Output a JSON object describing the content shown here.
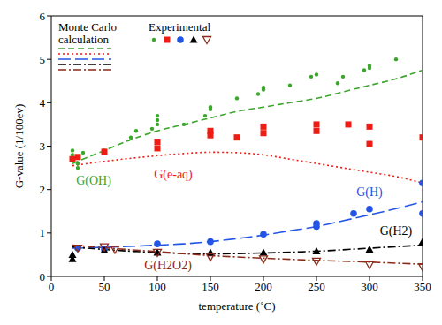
{
  "chart_data": {
    "type": "line",
    "x_label": "temperature (˚C)",
    "y_label": "G-value (1/100ev)",
    "xlim": [
      0,
      350
    ],
    "xticks": [
      0,
      50,
      100,
      150,
      200,
      250,
      300,
      350
    ],
    "ylim": [
      0,
      6
    ],
    "yticks": [
      0,
      1,
      2,
      3,
      4,
      5,
      6
    ],
    "grid": false,
    "legend": "upper left",
    "legend_titles": {
      "line": "Monte Carlo calculation",
      "scatter": "Experimental"
    },
    "series": [
      {
        "name": "G(OH)",
        "type": "line",
        "color": "#3aa62a",
        "line_style": "dashed",
        "x": [
          20,
          25,
          50,
          75,
          100,
          125,
          150,
          175,
          200,
          225,
          250,
          275,
          300,
          325,
          350
        ],
        "values": [
          2.6,
          2.65,
          2.9,
          3.15,
          3.35,
          3.5,
          3.65,
          3.8,
          3.9,
          4.0,
          4.1,
          4.25,
          4.4,
          4.55,
          4.75
        ]
      },
      {
        "name": "G(e-aq)",
        "type": "line",
        "color": "#ee1c12",
        "line_style": "dotted",
        "x": [
          20,
          50,
          75,
          100,
          125,
          150,
          175,
          200,
          225,
          250,
          275,
          300,
          325,
          350
        ],
        "values": [
          2.55,
          2.65,
          2.72,
          2.78,
          2.83,
          2.86,
          2.85,
          2.8,
          2.7,
          2.6,
          2.5,
          2.4,
          2.3,
          2.15
        ]
      },
      {
        "name": "G(H)",
        "type": "line",
        "color": "#2255e6",
        "line_style": "long_dash",
        "x": [
          20,
          50,
          100,
          125,
          150,
          175,
          200,
          225,
          250,
          275,
          300,
          325,
          350
        ],
        "values": [
          0.65,
          0.67,
          0.72,
          0.75,
          0.8,
          0.87,
          0.95,
          1.05,
          1.15,
          1.28,
          1.42,
          1.56,
          1.72
        ]
      },
      {
        "name": "G(H2)",
        "type": "line",
        "color": "#000000",
        "line_style": "dash_dot",
        "x": [
          20,
          50,
          100,
          150,
          200,
          250,
          300,
          350
        ],
        "values": [
          0.68,
          0.62,
          0.55,
          0.52,
          0.54,
          0.58,
          0.65,
          0.72
        ]
      },
      {
        "name": "G(H2O2)",
        "type": "line",
        "color": "#8b2a1a",
        "line_style": "dash_dot",
        "x": [
          20,
          50,
          100,
          150,
          200,
          250,
          300,
          350
        ],
        "values": [
          0.72,
          0.66,
          0.57,
          0.48,
          0.42,
          0.37,
          0.33,
          0.28
        ]
      },
      {
        "name": "G(OH)",
        "type": "scatter",
        "color": "#3aa62a",
        "marker": "dot",
        "x": [
          20,
          20,
          25,
          25,
          25,
          30,
          50,
          75,
          80,
          95,
          100,
          100,
          100,
          125,
          145,
          150,
          150,
          175,
          195,
          200,
          200,
          225,
          245,
          250,
          270,
          275,
          295,
          300,
          300,
          325
        ],
        "values": [
          2.9,
          2.8,
          2.5,
          2.6,
          2.75,
          2.85,
          2.9,
          3.2,
          3.35,
          3.4,
          3.6,
          3.5,
          3.7,
          3.5,
          3.7,
          3.9,
          3.85,
          4.1,
          4.2,
          4.3,
          4.35,
          4.4,
          4.6,
          4.65,
          4.45,
          4.6,
          4.75,
          4.85,
          4.8,
          5.0
        ]
      },
      {
        "name": "G(e-aq)",
        "type": "scatter",
        "color": "#ee1c12",
        "marker": "square",
        "x": [
          20,
          25,
          50,
          100,
          100,
          150,
          150,
          175,
          200,
          200,
          250,
          250,
          280,
          300,
          300,
          350
        ],
        "values": [
          2.7,
          2.75,
          2.87,
          2.95,
          3.1,
          3.25,
          3.35,
          3.2,
          3.3,
          3.45,
          3.35,
          3.5,
          3.5,
          3.05,
          3.45,
          3.2
        ]
      },
      {
        "name": "G(H)",
        "type": "scatter",
        "color": "#2255e6",
        "marker": "circle",
        "x": [
          25,
          50,
          100,
          150,
          200,
          250,
          250,
          285,
          300,
          350,
          350
        ],
        "values": [
          0.65,
          0.62,
          0.75,
          0.8,
          0.97,
          1.15,
          1.22,
          1.45,
          1.55,
          1.45,
          2.15
        ]
      },
      {
        "name": "G(H2)",
        "type": "scatter",
        "color": "#000000",
        "marker": "triangle",
        "x": [
          20,
          20,
          50,
          100,
          150,
          200,
          250,
          300,
          350
        ],
        "values": [
          0.4,
          0.5,
          0.6,
          0.55,
          0.55,
          0.55,
          0.58,
          0.62,
          0.8
        ]
      },
      {
        "name": "G(H2O2)",
        "type": "scatter",
        "color": "#8b2a1a",
        "marker": "triangle_down_open",
        "x": [
          25,
          50,
          60,
          100,
          150,
          200,
          250,
          300,
          350
        ],
        "values": [
          0.65,
          0.68,
          0.62,
          0.55,
          0.45,
          0.4,
          0.35,
          0.27,
          0.22
        ]
      }
    ],
    "annotations": [
      {
        "text": "G(OH)",
        "x": 40,
        "y": 2.2
      },
      {
        "text": "G(e-aq)",
        "x": 115,
        "y": 2.35
      },
      {
        "text": "G(H)",
        "x": 300,
        "y": 1.95
      },
      {
        "text": "G(H2)",
        "x": 325,
        "y": 1.05
      },
      {
        "text": "G(H2O2)",
        "x": 110,
        "y": 0.25
      }
    ]
  }
}
